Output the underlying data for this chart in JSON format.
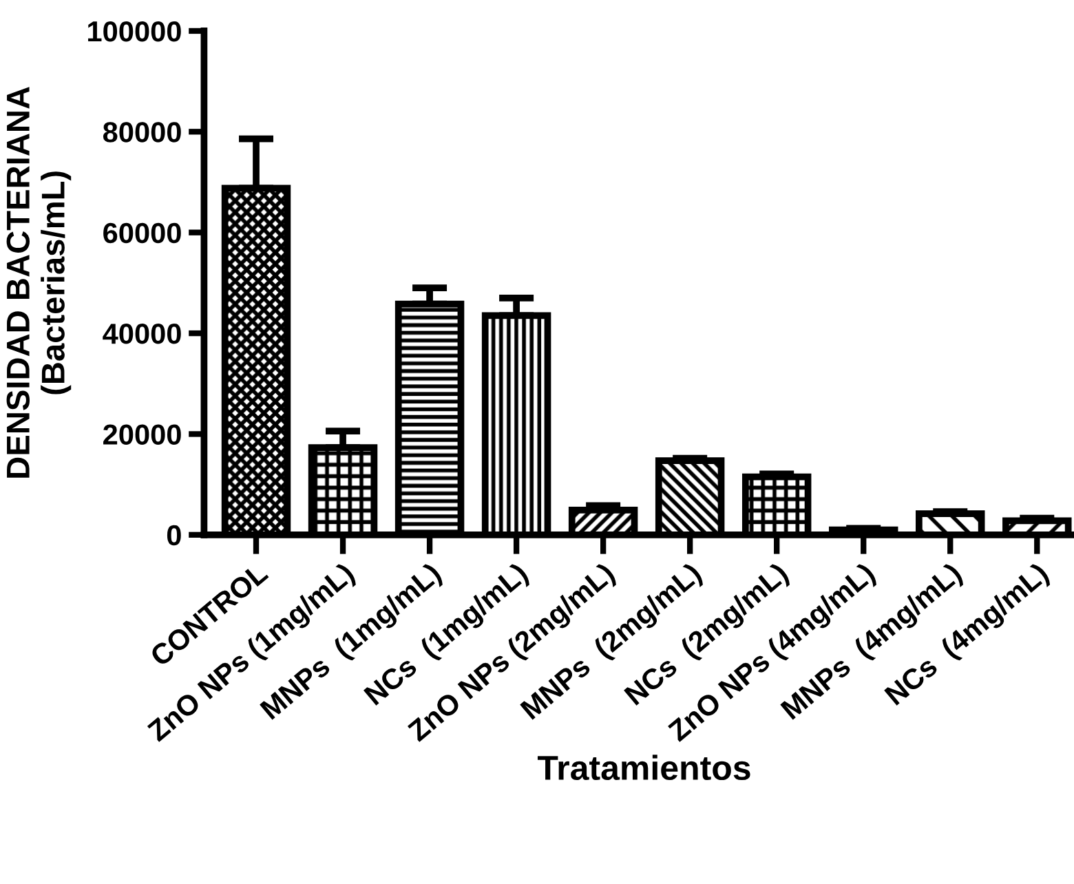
{
  "chart_data": {
    "type": "bar",
    "ylabel": "DENSIDAD BACTERIANA\n(Bacterias/mL)",
    "xlabel": "Tratamientos",
    "categories": [
      "CONTROL",
      "ZnO NPs (1mg/mL)",
      "MNPs  (1mg/mL)",
      "NCs  (1mg/mL)",
      "ZnO NPs (2mg/mL)",
      "MNPs  (2mg/mL)",
      "NCs  (2mg/mL)",
      "ZnO NPs (4mg/mL)",
      "MNPs  (4mg/mL)",
      "NCs  (4mg/mL)"
    ],
    "values": [
      68800,
      17300,
      45800,
      43500,
      4900,
      14700,
      11500,
      1000,
      4200,
      2800
    ],
    "errors": [
      [
        68800,
        78600
      ],
      [
        17300,
        20600
      ],
      [
        45800,
        49000
      ],
      [
        43500,
        47000
      ],
      [
        4900,
        5800
      ],
      [
        14700,
        15200
      ],
      [
        11500,
        12100
      ],
      [
        1000,
        1300
      ],
      [
        4200,
        4600
      ],
      [
        2800,
        3300
      ]
    ],
    "color": "#000000",
    "ylim": [
      0,
      100000
    ],
    "yticks": [
      0,
      20000,
      40000,
      60000,
      80000,
      100000
    ],
    "grid": false,
    "legend": false
  }
}
